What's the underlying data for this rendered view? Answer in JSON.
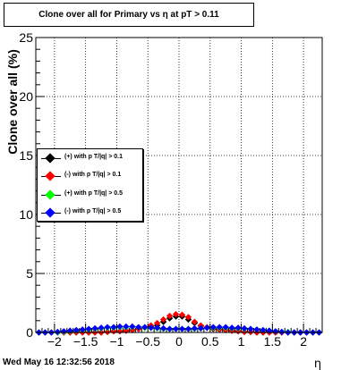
{
  "title": "Clone  over all for Primary vs   η at pT > 0.11",
  "timestamp": "Wed May 16 12:32:56 2018",
  "colors": {
    "black": "#000000",
    "red": "#ff0000",
    "green": "#00ff00",
    "blue": "#0000ff"
  },
  "chart_data": {
    "type": "scatter",
    "title": "Clone  over all for Primary vs   η at pT > 0.11",
    "xlabel": "η",
    "ylabel": "Clone  over all (%)",
    "xlim": [
      -2.3,
      2.3
    ],
    "ylim": [
      0,
      25
    ],
    "grid": true,
    "legend_placement": "left",
    "x_ticks": [
      "−2",
      "−1.5",
      "−1",
      "−0.5",
      "0",
      "0.5",
      "1",
      "1.5",
      "2"
    ],
    "x_tick_values": [
      -2,
      -1.5,
      -1,
      -0.5,
      0,
      0.5,
      1,
      1.5,
      2
    ],
    "y_ticks": [
      "0",
      "5",
      "10",
      "15",
      "20",
      "25"
    ],
    "y_tick_values": [
      0,
      5,
      10,
      15,
      20,
      25
    ],
    "x": [
      -2.25,
      -2.15,
      -2.05,
      -1.95,
      -1.85,
      -1.75,
      -1.65,
      -1.55,
      -1.45,
      -1.35,
      -1.25,
      -1.15,
      -1.05,
      -0.95,
      -0.85,
      -0.75,
      -0.65,
      -0.55,
      -0.45,
      -0.35,
      -0.25,
      -0.15,
      -0.05,
      0.05,
      0.15,
      0.25,
      0.35,
      0.45,
      0.55,
      0.65,
      0.75,
      0.85,
      0.95,
      1.05,
      1.15,
      1.25,
      1.35,
      1.45,
      1.55,
      1.65,
      1.75,
      1.85,
      1.95,
      2.05,
      2.15,
      2.25
    ],
    "series": [
      {
        "name": "(+) with p T/|q| > 0.1",
        "color": "#000000",
        "values": [
          0,
          0,
          0,
          0,
          0,
          0,
          0,
          0,
          0,
          0,
          0,
          0.05,
          0.1,
          0.1,
          0.15,
          0.2,
          0.3,
          0.4,
          0.5,
          0.6,
          0.9,
          1.2,
          1.35,
          1.35,
          1.1,
          0.8,
          0.55,
          0.4,
          0.3,
          0.25,
          0.2,
          0.15,
          0.1,
          0.05,
          0.05,
          0,
          0,
          0,
          0,
          0,
          0,
          0,
          0,
          0,
          0,
          0
        ]
      },
      {
        "name": "(-) with p T/|q| > 0.1",
        "color": "#ff0000",
        "values": [
          0,
          0,
          0,
          0,
          0,
          0,
          0,
          0,
          0,
          0,
          0,
          0.05,
          0.1,
          0.1,
          0.15,
          0.2,
          0.3,
          0.4,
          0.6,
          0.8,
          1.1,
          1.4,
          1.55,
          1.5,
          1.3,
          0.9,
          0.6,
          0.45,
          0.35,
          0.25,
          0.2,
          0.15,
          0.1,
          0.05,
          0.05,
          0,
          0,
          0,
          0,
          0,
          0,
          0,
          0,
          0,
          0,
          0
        ]
      },
      {
        "name": "(+) with p T/|q| > 0.5",
        "color": "#00ff00",
        "values": [
          0,
          0,
          0,
          0,
          0.05,
          0.1,
          0.15,
          0.2,
          0.25,
          0.3,
          0.35,
          0.4,
          0.4,
          0.45,
          0.45,
          0.45,
          0.45,
          0.4,
          0.4,
          0.35,
          0.3,
          0.3,
          0.3,
          0.3,
          0.3,
          0.3,
          0.35,
          0.4,
          0.4,
          0.4,
          0.4,
          0.35,
          0.35,
          0.3,
          0.3,
          0.25,
          0.2,
          0.15,
          0.1,
          0.05,
          0.05,
          0,
          0,
          0,
          0,
          0
        ]
      },
      {
        "name": "(-) with p T/|q| > 0.5",
        "color": "#0000ff",
        "values": [
          0,
          0,
          0,
          0.05,
          0.1,
          0.15,
          0.2,
          0.25,
          0.3,
          0.35,
          0.4,
          0.45,
          0.45,
          0.5,
          0.5,
          0.5,
          0.45,
          0.45,
          0.4,
          0.4,
          0.35,
          0.3,
          0.3,
          0.3,
          0.3,
          0.35,
          0.35,
          0.4,
          0.45,
          0.45,
          0.45,
          0.4,
          0.4,
          0.35,
          0.3,
          0.25,
          0.2,
          0.15,
          0.1,
          0.05,
          0,
          0,
          0,
          0,
          0,
          0
        ]
      }
    ]
  }
}
